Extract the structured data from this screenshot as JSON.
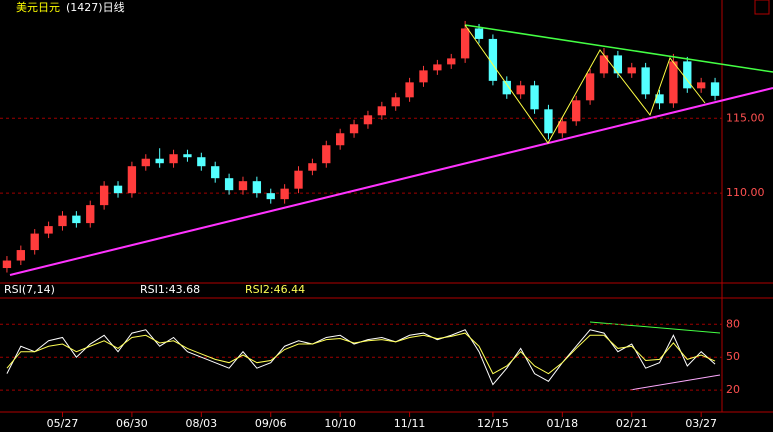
{
  "chart_data": {
    "type": "candlestick",
    "title": "美元日元",
    "subtitle": "(1427)日线",
    "up_color": "#ff3c3c",
    "down_color": "#54ffff",
    "ylim": [
      104,
      122.9
    ],
    "yticks": [
      {
        "value": 115,
        "label": "115.00"
      },
      {
        "value": 110,
        "label": "110.00"
      }
    ],
    "xticks": [
      {
        "value": 4,
        "label": "05/27"
      },
      {
        "value": 9,
        "label": "06/30"
      },
      {
        "value": 14,
        "label": "08/03"
      },
      {
        "value": 19,
        "label": "09/06"
      },
      {
        "value": 24,
        "label": "10/10"
      },
      {
        "value": 29,
        "label": "11/11"
      },
      {
        "value": 35,
        "label": "12/15"
      },
      {
        "value": 40,
        "label": "01/18"
      },
      {
        "value": 45,
        "label": "02/21"
      },
      {
        "value": 50,
        "label": "03/27"
      }
    ],
    "ohlc": [
      [
        105.0,
        105.8,
        104.7,
        105.5
      ],
      [
        105.5,
        106.5,
        105.2,
        106.2
      ],
      [
        106.2,
        107.6,
        105.9,
        107.3
      ],
      [
        107.3,
        108.1,
        107.0,
        107.8
      ],
      [
        107.8,
        108.8,
        107.5,
        108.5
      ],
      [
        108.5,
        108.8,
        107.7,
        108.0
      ],
      [
        108.0,
        109.5,
        107.7,
        109.2
      ],
      [
        109.2,
        110.8,
        108.9,
        110.5
      ],
      [
        110.5,
        110.8,
        109.7,
        110.0
      ],
      [
        110.0,
        112.1,
        109.7,
        111.8
      ],
      [
        111.8,
        112.6,
        111.5,
        112.3
      ],
      [
        112.3,
        113.0,
        111.7,
        112.0
      ],
      [
        112.0,
        112.9,
        111.7,
        112.6
      ],
      [
        112.6,
        112.9,
        112.1,
        112.4
      ],
      [
        112.4,
        112.7,
        111.5,
        111.8
      ],
      [
        111.8,
        112.1,
        110.7,
        111.0
      ],
      [
        111.0,
        111.3,
        109.9,
        110.2
      ],
      [
        110.2,
        111.1,
        109.9,
        110.8
      ],
      [
        110.8,
        111.1,
        109.7,
        110.0
      ],
      [
        110.0,
        110.3,
        109.3,
        109.6
      ],
      [
        109.6,
        110.6,
        109.3,
        110.3
      ],
      [
        110.3,
        111.8,
        110.0,
        111.5
      ],
      [
        111.5,
        112.3,
        111.2,
        112.0
      ],
      [
        112.0,
        113.5,
        111.7,
        113.2
      ],
      [
        113.2,
        114.3,
        112.9,
        114.0
      ],
      [
        114.0,
        114.9,
        113.7,
        114.6
      ],
      [
        114.6,
        115.5,
        114.3,
        115.2
      ],
      [
        115.2,
        116.1,
        114.9,
        115.8
      ],
      [
        115.8,
        116.7,
        115.5,
        116.4
      ],
      [
        116.4,
        117.7,
        116.1,
        117.4
      ],
      [
        117.4,
        118.5,
        117.1,
        118.2
      ],
      [
        118.2,
        118.9,
        117.9,
        118.6
      ],
      [
        118.6,
        119.3,
        118.3,
        119.0
      ],
      [
        119.0,
        121.5,
        118.7,
        121.0
      ],
      [
        121.0,
        121.3,
        120.0,
        120.3
      ],
      [
        120.3,
        120.6,
        117.2,
        117.5
      ],
      [
        117.5,
        117.8,
        116.3,
        116.6
      ],
      [
        116.6,
        117.5,
        116.3,
        117.2
      ],
      [
        117.2,
        117.5,
        115.3,
        115.6
      ],
      [
        115.6,
        115.9,
        113.6,
        114.0
      ],
      [
        114.0,
        115.1,
        113.7,
        114.8
      ],
      [
        114.8,
        116.5,
        114.5,
        116.2
      ],
      [
        116.2,
        118.3,
        115.9,
        118.0
      ],
      [
        118.0,
        119.7,
        117.7,
        119.2
      ],
      [
        119.2,
        119.5,
        117.7,
        118.0
      ],
      [
        118.0,
        118.7,
        117.7,
        118.4
      ],
      [
        118.4,
        118.7,
        116.3,
        116.6
      ],
      [
        116.6,
        116.9,
        115.6,
        116.0
      ],
      [
        116.0,
        119.3,
        115.7,
        118.8
      ],
      [
        118.8,
        119.1,
        116.7,
        117.0
      ],
      [
        117.0,
        117.7,
        116.7,
        117.4
      ],
      [
        117.4,
        117.7,
        116.2,
        116.5
      ]
    ],
    "rsi": {
      "labels": [
        "RSI(7,14)",
        "RSI1:43.68",
        "RSI2:46.44"
      ],
      "ylim": [
        0,
        104
      ],
      "yticks": [
        80,
        50,
        20
      ],
      "series": [
        {
          "color": "#ffffff",
          "values": [
            35,
            60,
            55,
            65,
            68,
            50,
            62,
            70,
            55,
            72,
            75,
            60,
            68,
            55,
            50,
            45,
            40,
            55,
            40,
            45,
            60,
            65,
            62,
            68,
            70,
            62,
            66,
            68,
            64,
            70,
            72,
            66,
            70,
            75,
            55,
            25,
            40,
            58,
            35,
            28,
            45,
            60,
            75,
            72,
            55,
            62,
            40,
            45,
            70,
            42,
            55,
            43.68
          ]
        },
        {
          "color": "#ffff55",
          "values": [
            40,
            55,
            55,
            60,
            62,
            55,
            60,
            65,
            58,
            68,
            70,
            63,
            65,
            58,
            53,
            48,
            45,
            52,
            45,
            47,
            57,
            62,
            62,
            66,
            67,
            63,
            65,
            66,
            64,
            68,
            70,
            67,
            69,
            72,
            60,
            35,
            42,
            55,
            42,
            35,
            45,
            58,
            70,
            70,
            58,
            60,
            47,
            48,
            63,
            48,
            52,
            46.44
          ]
        }
      ]
    }
  }
}
